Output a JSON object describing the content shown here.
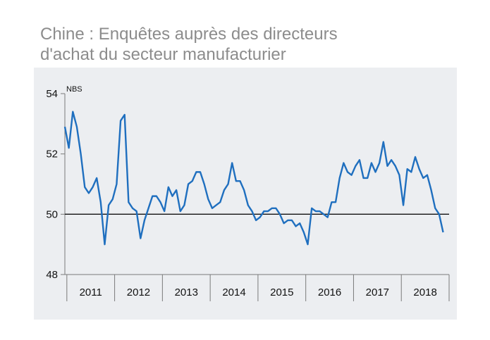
{
  "title_line1": "Chine : Enquêtes auprès des directeurs",
  "title_line2": "d'achat du secteur manufacturier",
  "chart_data": {
    "type": "line",
    "unit_label": "NBS",
    "ylim": [
      48,
      54
    ],
    "y_ticks": [
      "48",
      "50",
      "52",
      "54"
    ],
    "reference_line": 50,
    "x_labels": [
      "2011",
      "2012",
      "2013",
      "2014",
      "2015",
      "2016",
      "2017",
      "2018"
    ],
    "x_start": "2010-12",
    "series_color": "#1f6fbf",
    "series": [
      {
        "values": [
          52.9,
          52.2,
          53.4,
          52.9,
          52.0,
          50.9,
          50.7,
          50.9,
          51.2,
          50.4,
          49.0,
          50.3,
          50.5,
          51.0,
          53.1,
          53.3,
          50.4,
          50.2,
          50.1,
          49.2,
          49.8,
          50.2,
          50.6,
          50.6,
          50.4,
          50.1,
          50.9,
          50.6,
          50.8,
          50.1,
          50.3,
          51.0,
          51.1,
          51.4,
          51.4,
          51.0,
          50.5,
          50.2,
          50.3,
          50.4,
          50.8,
          51.0,
          51.7,
          51.1,
          51.1,
          50.8,
          50.3,
          50.1,
          49.8,
          49.9,
          50.1,
          50.1,
          50.2,
          50.2,
          50.0,
          49.7,
          49.8,
          49.8,
          49.6,
          49.7,
          49.4,
          49.0,
          50.2,
          50.1,
          50.1,
          50.0,
          49.9,
          50.4,
          50.4,
          51.2,
          51.7,
          51.4,
          51.3,
          51.6,
          51.8,
          51.2,
          51.2,
          51.7,
          51.4,
          51.7,
          52.4,
          51.6,
          51.8,
          51.6,
          51.3,
          50.3,
          51.5,
          51.4,
          51.9,
          51.5,
          51.2,
          51.3,
          50.8,
          50.2,
          50.0,
          49.4
        ]
      }
    ]
  }
}
